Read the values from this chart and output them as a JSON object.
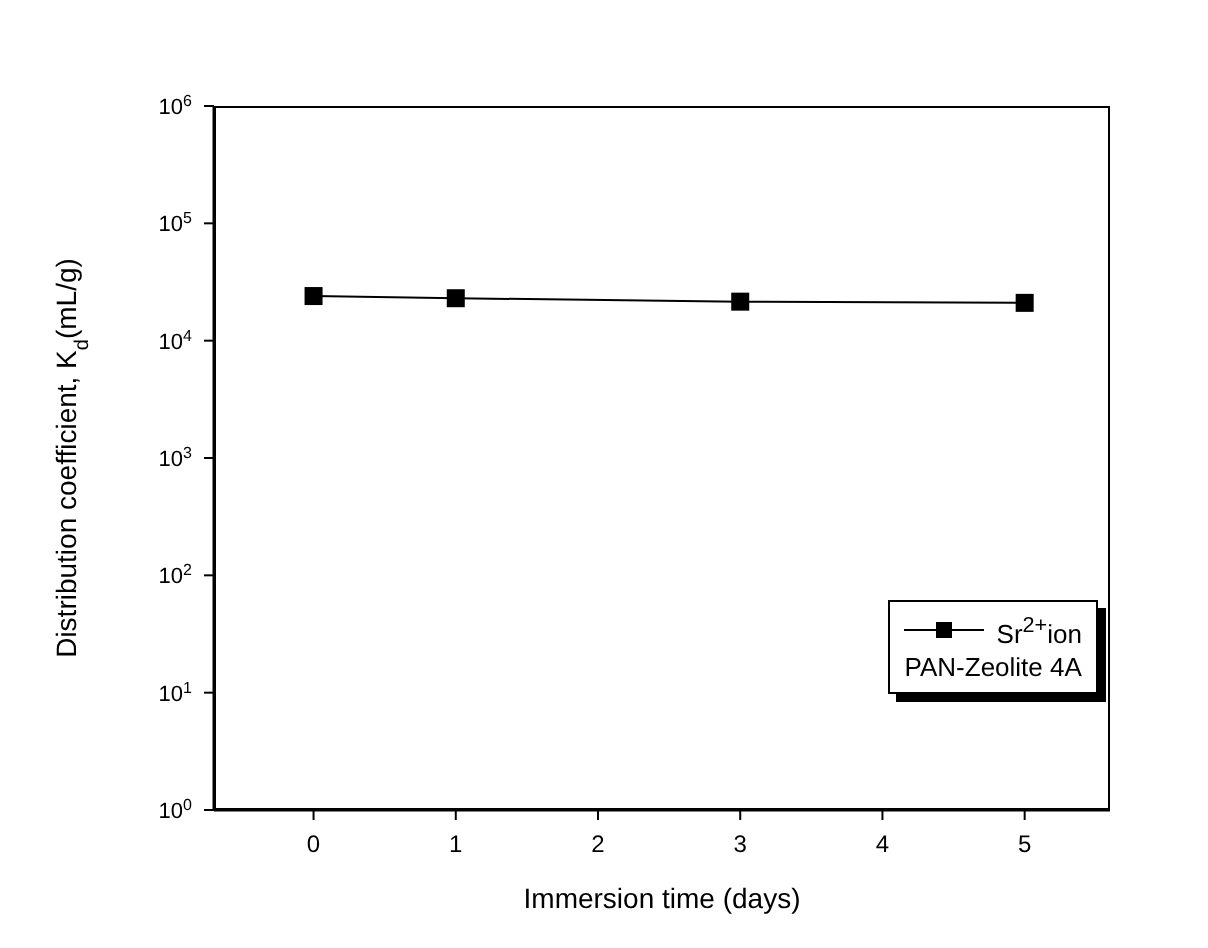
{
  "chart_data": {
    "type": "line",
    "xlabel": "Immersion time (days)",
    "ylabel": "Distribution coefficient, K$_{d}$(mL/g)",
    "legend_title": "PAN-Zeolite 4A",
    "x": [
      0,
      1,
      3,
      5
    ],
    "series": [
      {
        "name": "Sr$^{2+}$ion",
        "color": "#000000",
        "values": [
          24000,
          23000,
          21500,
          21000
        ]
      }
    ],
    "xlim": [
      -0.7,
      5.6
    ],
    "xticks": [
      0,
      1,
      2,
      3,
      4,
      5
    ],
    "ylim": [
      1,
      1000000
    ],
    "yticks": [
      {
        "value": 1,
        "label": "10$^{0}$"
      },
      {
        "value": 10,
        "label": "10$^{1}$"
      },
      {
        "value": 100,
        "label": "10$^{2}$"
      },
      {
        "value": 1000,
        "label": "10$^{3}$"
      },
      {
        "value": 10000,
        "label": "10$^{4}$"
      },
      {
        "value": 100000,
        "label": "10$^{5}$"
      },
      {
        "value": 1000000,
        "label": "10$^{6}$"
      }
    ],
    "log": "y",
    "grid": false,
    "legend": "bottom right",
    "marker": "square",
    "line_style": "solid"
  }
}
